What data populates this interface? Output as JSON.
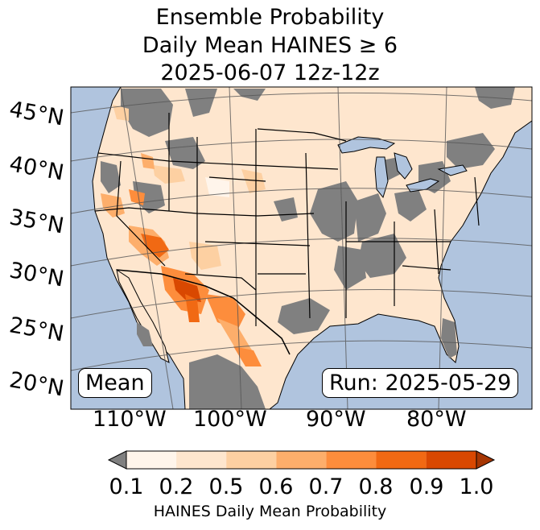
{
  "title": {
    "line1": "Ensemble Probability",
    "line2": "Daily Mean HAINES ≥ 6",
    "line3": "2025-06-07 12z-12z"
  },
  "map": {
    "lat_labels": [
      "45°N",
      "40°N",
      "35°N",
      "30°N",
      "25°N",
      "20°N"
    ],
    "lon_labels": [
      "110°W",
      "100°W",
      "90°W",
      "80°W"
    ],
    "box_left": "Mean",
    "box_right": "Run: 2025-05-29",
    "colors": {
      "ocean": "#b0c4de",
      "masked": "#808080",
      "border": "#000000",
      "grid": "#555555"
    }
  },
  "colorbar": {
    "ticks": [
      "0.1",
      "0.2",
      "0.5",
      "0.6",
      "0.7",
      "0.8",
      "0.9",
      "1.0"
    ],
    "label": "HAINES Daily Mean Probability",
    "colors": [
      "#fff5eb",
      "#fee6ce",
      "#fdd0a2",
      "#fdae6b",
      "#fd8d3c",
      "#f16913",
      "#d94801",
      "#a63603"
    ],
    "under_color": "#808080"
  }
}
